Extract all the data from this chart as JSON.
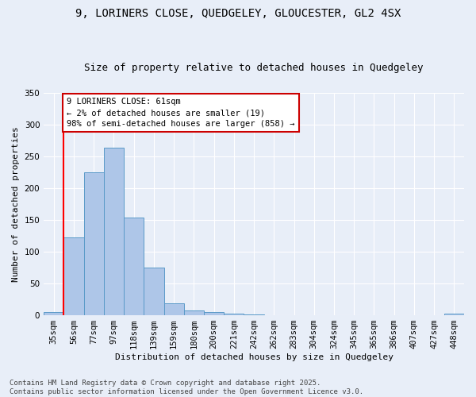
{
  "title_line1": "9, LORINERS CLOSE, QUEDGELEY, GLOUCESTER, GL2 4SX",
  "title_line2": "Size of property relative to detached houses in Quedgeley",
  "xlabel": "Distribution of detached houses by size in Quedgeley",
  "ylabel": "Number of detached properties",
  "bins": [
    "35sqm",
    "56sqm",
    "77sqm",
    "97sqm",
    "118sqm",
    "139sqm",
    "159sqm",
    "180sqm",
    "200sqm",
    "221sqm",
    "242sqm",
    "262sqm",
    "283sqm",
    "304sqm",
    "324sqm",
    "345sqm",
    "365sqm",
    "386sqm",
    "407sqm",
    "427sqm",
    "448sqm"
  ],
  "bar_heights": [
    5,
    122,
    225,
    263,
    154,
    75,
    19,
    7,
    5,
    3,
    1,
    0,
    0,
    0,
    0,
    0,
    0,
    0,
    0,
    0,
    2
  ],
  "bar_color": "#aec6e8",
  "bar_edge_color": "#5a9ac8",
  "background_color": "#e8eef8",
  "grid_color": "#ffffff",
  "red_line_x": 1,
  "annotation_text": "9 LORINERS CLOSE: 61sqm\n← 2% of detached houses are smaller (19)\n98% of semi-detached houses are larger (858) →",
  "annotation_box_color": "#ffffff",
  "annotation_box_edge_color": "#cc0000",
  "footer_line1": "Contains HM Land Registry data © Crown copyright and database right 2025.",
  "footer_line2": "Contains public sector information licensed under the Open Government Licence v3.0.",
  "ylim": [
    0,
    350
  ],
  "yticks": [
    0,
    50,
    100,
    150,
    200,
    250,
    300,
    350
  ],
  "title_fontsize": 10,
  "subtitle_fontsize": 9,
  "axis_label_fontsize": 8,
  "tick_fontsize": 7.5,
  "footer_fontsize": 6.5,
  "annotation_fontsize": 7.5
}
